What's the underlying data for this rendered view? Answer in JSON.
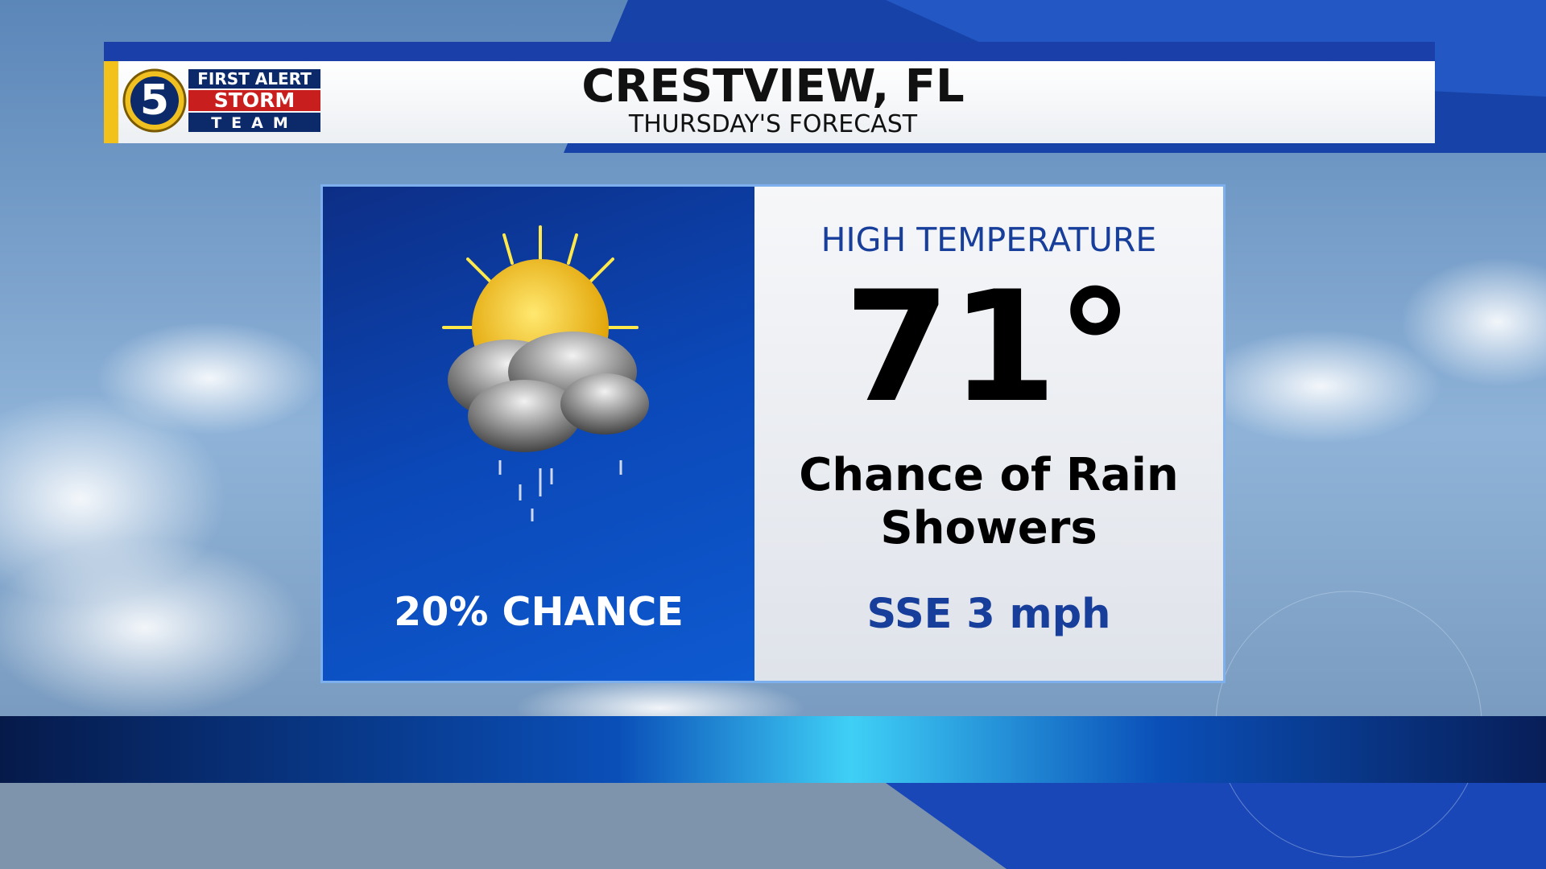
{
  "logo": {
    "number": "5",
    "line1": "FIRST ALERT",
    "line2": "STORM",
    "line3": "TEAM"
  },
  "header": {
    "title": "CRESTVIEW, FL",
    "subtitle": "THURSDAY'S FORECAST"
  },
  "forecast": {
    "rain_chance": "20% CHANCE",
    "high_label": "HIGH TEMPERATURE",
    "high": "71°",
    "conditions": [
      "Chance of Rain",
      "Showers"
    ],
    "wind": "SSE 3 mph"
  }
}
